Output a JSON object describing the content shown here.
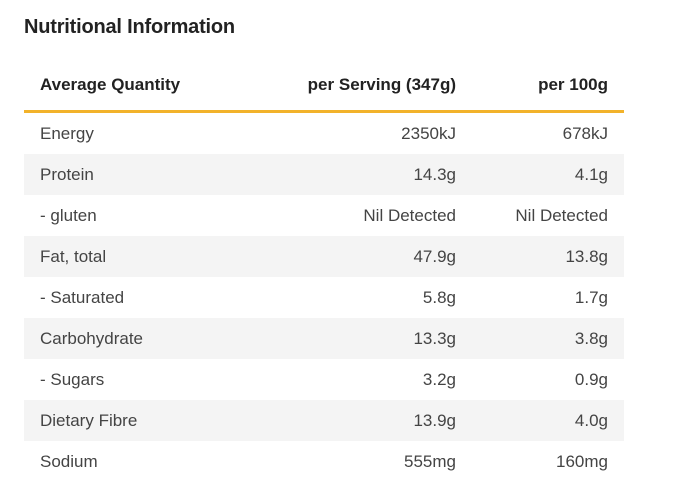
{
  "title": "Nutritional Information",
  "table": {
    "headers": [
      "Average Quantity",
      "per Serving (347g)",
      "per 100g"
    ],
    "rows": [
      {
        "label": "Energy",
        "per_serving": "2350kJ",
        "per_100g": "678kJ"
      },
      {
        "label": "Protein",
        "per_serving": "14.3g",
        "per_100g": "4.1g"
      },
      {
        "label": "- gluten",
        "per_serving": "Nil Detected",
        "per_100g": "Nil Detected"
      },
      {
        "label": "Fat, total",
        "per_serving": "47.9g",
        "per_100g": "13.8g"
      },
      {
        "label": "- Saturated",
        "per_serving": "5.8g",
        "per_100g": "1.7g"
      },
      {
        "label": "Carbohydrate",
        "per_serving": "13.3g",
        "per_100g": "3.8g"
      },
      {
        "label": "- Sugars",
        "per_serving": "3.2g",
        "per_100g": "0.9g"
      },
      {
        "label": "Dietary Fibre",
        "per_serving": "13.9g",
        "per_100g": "4.0g"
      },
      {
        "label": "Sodium",
        "per_serving": "555mg",
        "per_100g": "160mg"
      }
    ]
  },
  "colors": {
    "header_rule": "#f2b22a",
    "stripe": "#f4f4f4"
  }
}
